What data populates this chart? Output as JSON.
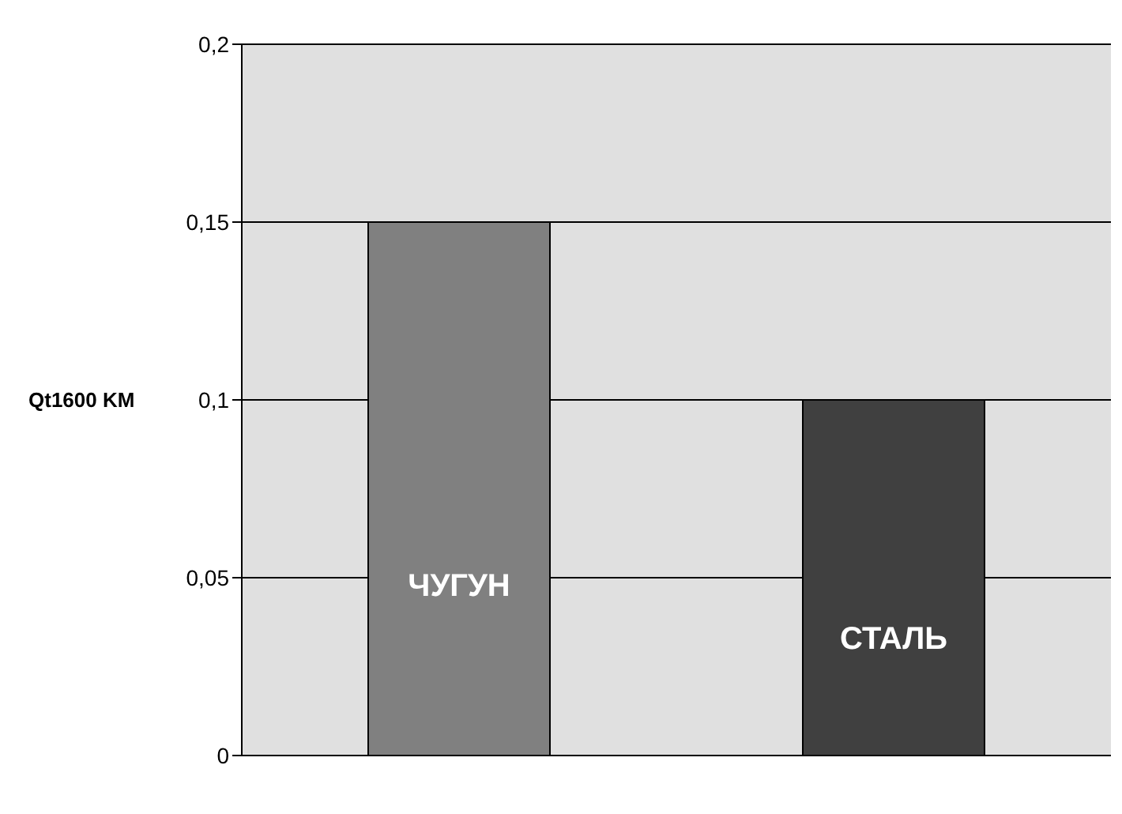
{
  "chart_data": {
    "type": "bar",
    "ylabel": "Qt1600 KM",
    "categories": [
      "ЧУГУН",
      "СТАЛЬ"
    ],
    "values": [
      0.15,
      0.1
    ],
    "colors": [
      "#808080",
      "#404040"
    ],
    "ylim": [
      0,
      0.2
    ],
    "yticks": [
      0,
      {
        "value": 0.05,
        "label": "0,05"
      },
      {
        "value": 0.1,
        "label": "0,1"
      },
      {
        "value": 0.15,
        "label": "0,15"
      },
      {
        "value": 0.2,
        "label": "0,2"
      }
    ],
    "grid": "y",
    "legend": false,
    "tick_labels": "y"
  }
}
